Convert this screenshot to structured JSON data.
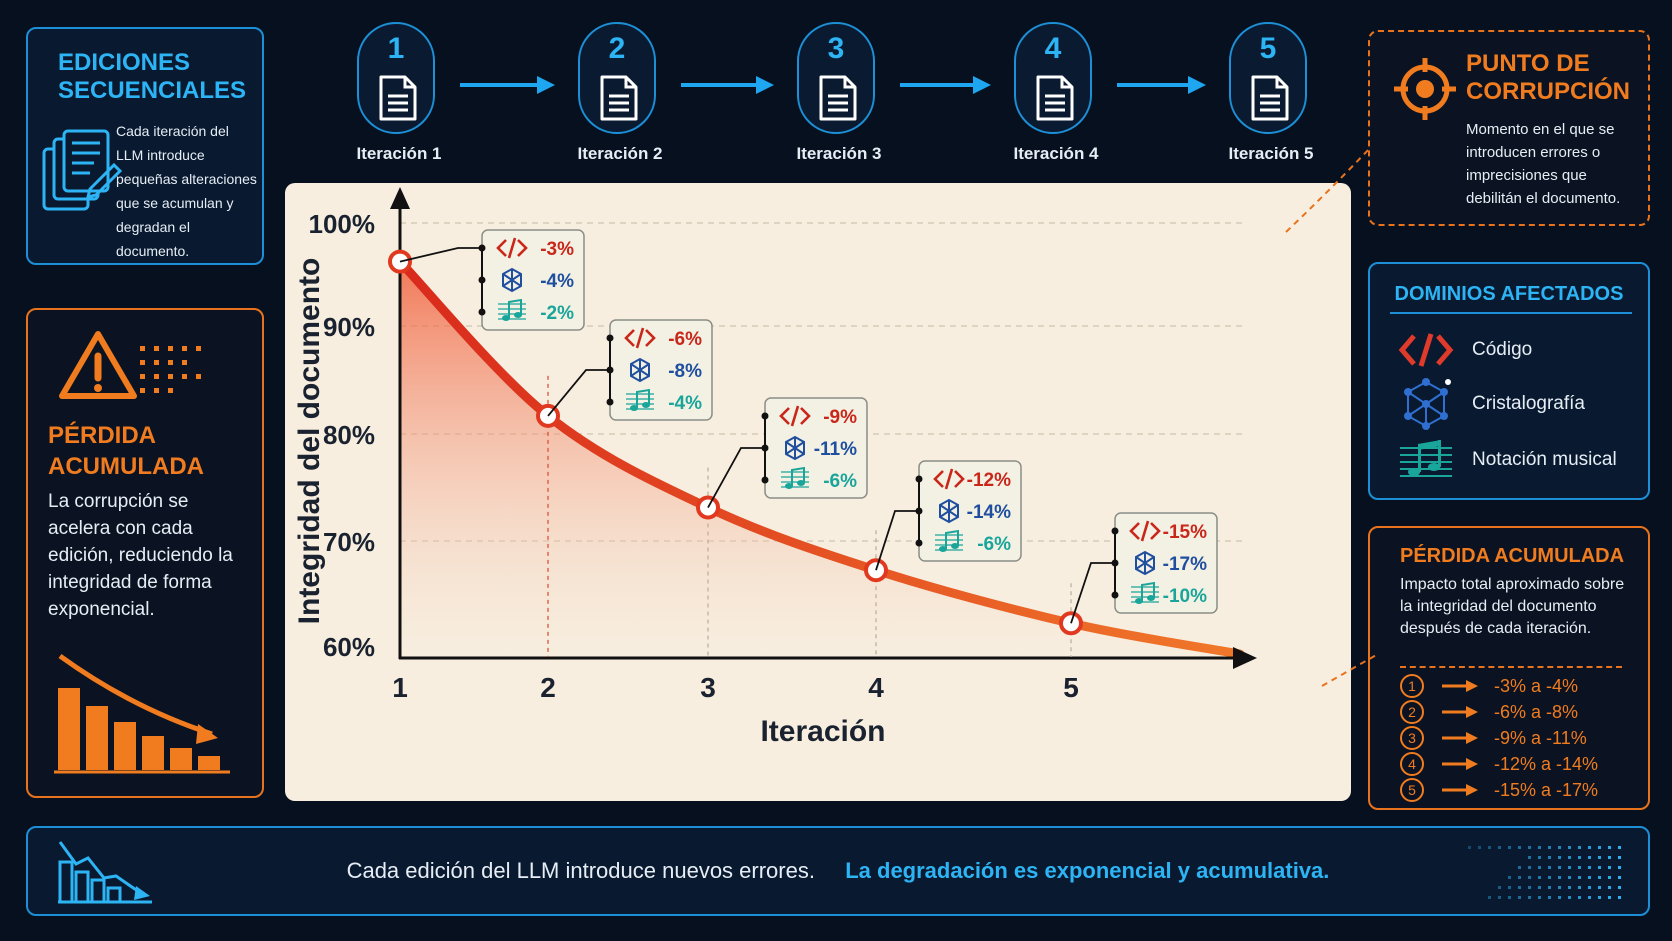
{
  "left_top": {
    "title": "EDICIONES SECUENCIALES",
    "text": "Cada iteración del LLM introduce pequeñas alteraciones que se acumulan y degradan el documento.",
    "icon": "documents-pencil-icon"
  },
  "left_bottom": {
    "title": "PÉRDIDA ACUMULADA",
    "text": "La corrupción se acelera con cada edición, reduciendo la integridad de forma exponencial.",
    "icon": "warning-icon"
  },
  "steps": [
    {
      "num": "1",
      "label": "Iteración 1"
    },
    {
      "num": "2",
      "label": "Iteración 2"
    },
    {
      "num": "3",
      "label": "Iteración 3"
    },
    {
      "num": "4",
      "label": "Iteración 4"
    },
    {
      "num": "5",
      "label": "Iteración 5"
    }
  ],
  "right_top": {
    "title": "PUNTO DE CORRUPCIÓN",
    "text": "Momento en el que se introducen errores o imprecisiones que debilitán el documento.",
    "icon": "target-icon"
  },
  "domains": {
    "title": "DOMINIOS AFECTADOS",
    "items": [
      {
        "label": "Código",
        "icon": "code-icon",
        "color": "#e03a2a"
      },
      {
        "label": "Cristalografía",
        "icon": "crystal-lattice-icon",
        "color": "#2f6fd1"
      },
      {
        "label": "Notación musical",
        "icon": "music-notes-icon",
        "color": "#1aa59a"
      }
    ]
  },
  "right_bottom": {
    "title": "PÉRDIDA ACUMULADA",
    "text": "Impacto total aproximado sobre la integridad del documento después de cada iteración.",
    "rows": [
      {
        "n": "1",
        "range": "-3% a -4%"
      },
      {
        "n": "2",
        "range": "-6% a -8%"
      },
      {
        "n": "3",
        "range": "-9% a -11%"
      },
      {
        "n": "4",
        "range": "-12% a -14%"
      },
      {
        "n": "5",
        "range": "-15% a -17%"
      }
    ]
  },
  "footer": {
    "text_plain": "Cada edición del LLM introduce nuevos errores.",
    "text_bold": "La degradación es exponencial y acumulativa.",
    "icon": "declining-bars-icon"
  },
  "chart_data": {
    "type": "line",
    "xlabel": "Iteración",
    "ylabel": "Integridad del documento",
    "x_ticks": [
      "1",
      "2",
      "3",
      "4",
      "5"
    ],
    "y_ticks": [
      "100%",
      "90%",
      "80%",
      "70%",
      "60%"
    ],
    "xlim": [
      1,
      5.9
    ],
    "ylim": [
      59,
      104
    ],
    "grid": "horizontal-dashed",
    "curve": {
      "x": [
        1,
        2,
        3,
        4,
        5,
        5.9
      ],
      "y": [
        100,
        84,
        74.5,
        68,
        62.5,
        59.3
      ]
    },
    "points": [
      {
        "x": 1,
        "y": 100
      },
      {
        "x": 2,
        "y": 84
      },
      {
        "x": 3,
        "y": 74.5
      },
      {
        "x": 4,
        "y": 68
      },
      {
        "x": 5,
        "y": 62.5
      }
    ],
    "callouts": [
      {
        "x": 1,
        "values": [
          "-3%",
          "-4%",
          "-2%"
        ]
      },
      {
        "x": 2,
        "values": [
          "-6%",
          "-8%",
          "-4%"
        ]
      },
      {
        "x": 3,
        "values": [
          "-9%",
          "-11%",
          "-6%"
        ]
      },
      {
        "x": 4,
        "values": [
          "-12%",
          "-14%",
          "-6%"
        ]
      },
      {
        "x": 5,
        "values": [
          "-15%",
          "-17%",
          "-10%"
        ]
      }
    ],
    "series_colors": [
      "#c8271a",
      "#1f4f9e",
      "#1aa59a"
    ],
    "curve_color": "#e8431f"
  }
}
